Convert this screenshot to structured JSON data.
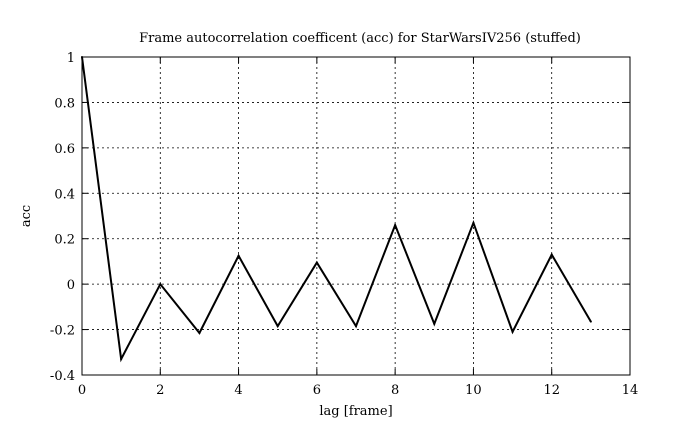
{
  "chart_data": {
    "type": "line",
    "title": "Frame autocorrelation coefficent (acc) for StarWarsIV256 (stuffed)",
    "xlabel": "lag [frame]",
    "ylabel": "acc",
    "xlim": [
      0,
      14
    ],
    "ylim": [
      -0.4,
      1
    ],
    "xticks": [
      0,
      2,
      4,
      6,
      8,
      10,
      12,
      14
    ],
    "xtick_labels": [
      "0",
      "2",
      "4",
      "6",
      "8",
      "10",
      "12",
      "14"
    ],
    "yticks": [
      -0.4,
      -0.2,
      0,
      0.2,
      0.4,
      0.6,
      0.8,
      1
    ],
    "ytick_labels": [
      "-0.4",
      "-0.2",
      "0",
      "0.2",
      "0.4",
      "0.6",
      "0.8",
      "1"
    ],
    "grid": true,
    "series": [
      {
        "x": [
          0,
          1,
          2,
          3,
          4,
          5,
          6,
          7,
          8,
          9,
          10,
          11,
          12,
          13
        ],
        "values": [
          1.0,
          -0.33,
          0.0,
          -0.215,
          0.125,
          -0.185,
          0.095,
          -0.185,
          0.26,
          -0.175,
          0.27,
          -0.21,
          0.13,
          -0.165
        ],
        "color": "#000000"
      }
    ]
  }
}
